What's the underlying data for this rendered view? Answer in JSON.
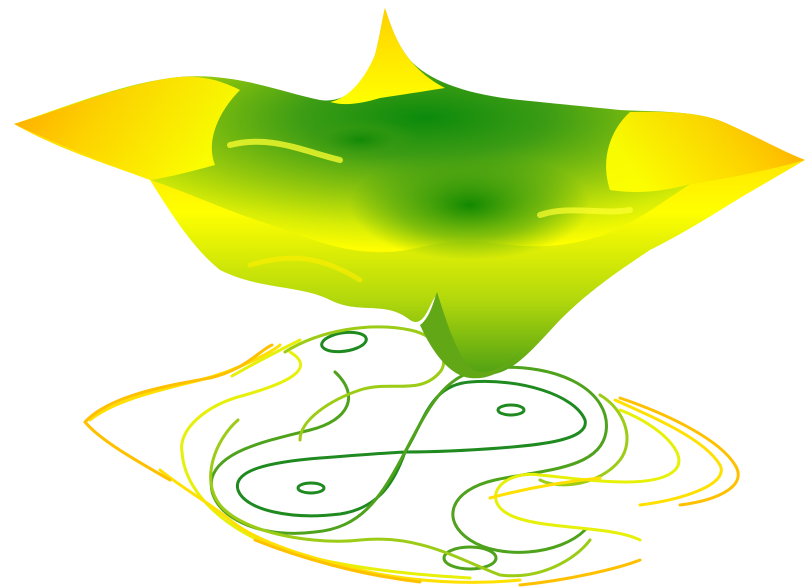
{
  "chart_data": {
    "type": "surface3d",
    "title": "",
    "xlabel": "",
    "ylabel": "",
    "zlabel": "",
    "axes_visible": false,
    "grid": false,
    "legend": "none",
    "colormap": [
      "#008000",
      "#66b21a",
      "#b5d80e",
      "#ffff00",
      "#ffd400",
      "#ffa500"
    ],
    "surface": {
      "description_kind": "warped sheet with central basin",
      "features": [
        "central-basin",
        "left-plateau",
        "right-plateau",
        "back-ridge-peak",
        "front-bottom-cusp"
      ]
    },
    "contour_levels": [
      {
        "level": 1,
        "color": "#1f8a1f"
      },
      {
        "level": 2,
        "color": "#4fa21c"
      },
      {
        "level": 3,
        "color": "#9ccc15"
      },
      {
        "level": 4,
        "color": "#e6f008"
      },
      {
        "level": 5,
        "color": "#ffe000"
      },
      {
        "level": 6,
        "color": "#ffc000"
      }
    ]
  }
}
